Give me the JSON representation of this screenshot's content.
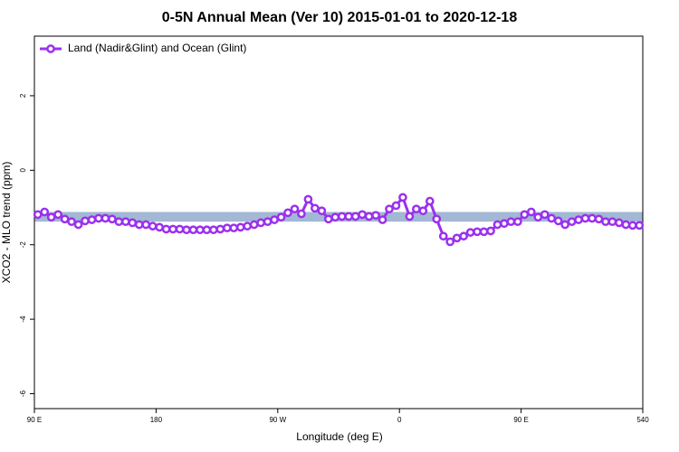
{
  "chart_data": {
    "type": "line",
    "title": "0-5N Annual Mean (Ver 10)   2015-01-01 to 2020-12-18",
    "x_label": "Longitude (deg E)",
    "y_label": "XCO2 - MLO trend (ppm)",
    "x": [
      92.5,
      97.5,
      102.5,
      107.5,
      112.5,
      117.5,
      122.5,
      127.5,
      132.5,
      137.5,
      142.5,
      147.5,
      152.5,
      157.5,
      162.5,
      167.5,
      172.5,
      177.5,
      182.5,
      187.5,
      192.5,
      197.5,
      202.5,
      207.5,
      212.5,
      217.5,
      222.5,
      227.5,
      232.5,
      237.5,
      242.5,
      247.5,
      252.5,
      257.5,
      262.5,
      267.5,
      272.5,
      277.5,
      282.5,
      287.5,
      292.5,
      297.5,
      302.5,
      307.5,
      312.5,
      317.5,
      322.5,
      327.5,
      332.5,
      337.5,
      342.5,
      347.5,
      352.5,
      357.5,
      362.5,
      367.5,
      372.5,
      377.5,
      382.5,
      387.5,
      392.5,
      397.5,
      402.5,
      407.5,
      412.5,
      417.5,
      422.5,
      427.5,
      432.5,
      437.5,
      442.5,
      447.5,
      452.5,
      457.5,
      462.5,
      467.5,
      472.5,
      477.5,
      482.5,
      487.5,
      492.5,
      497.5,
      502.5,
      507.5,
      512.5,
      517.5,
      522.5,
      527.5,
      532.5,
      537.5
    ],
    "series": [
      {
        "name": "Land (Nadir&Glint) and Ocean (Glint)",
        "color": "#9b30ee",
        "values": [
          -1.19,
          -1.12,
          -1.26,
          -1.19,
          -1.31,
          -1.38,
          -1.46,
          -1.36,
          -1.33,
          -1.29,
          -1.29,
          -1.31,
          -1.38,
          -1.38,
          -1.41,
          -1.46,
          -1.46,
          -1.5,
          -1.53,
          -1.58,
          -1.58,
          -1.58,
          -1.6,
          -1.6,
          -1.6,
          -1.6,
          -1.6,
          -1.58,
          -1.55,
          -1.55,
          -1.53,
          -1.5,
          -1.46,
          -1.41,
          -1.38,
          -1.33,
          -1.26,
          -1.14,
          -1.04,
          -1.17,
          -0.78,
          -1.02,
          -1.09,
          -1.31,
          -1.26,
          -1.24,
          -1.24,
          -1.24,
          -1.19,
          -1.24,
          -1.21,
          -1.33,
          -1.04,
          -0.95,
          -0.73,
          -1.24,
          -1.04,
          -1.09,
          -0.83,
          -1.31,
          -1.77,
          -1.92,
          -1.82,
          -1.77,
          -1.67,
          -1.65,
          -1.65,
          -1.63,
          -1.46,
          -1.43,
          -1.38,
          -1.38,
          -1.19,
          -1.12,
          -1.26,
          -1.19,
          -1.29,
          -1.36,
          -1.46,
          -1.38,
          -1.33,
          -1.29,
          -1.29,
          -1.31,
          -1.38,
          -1.38,
          -1.41,
          -1.46,
          -1.48,
          -1.48
        ]
      }
    ],
    "band": {
      "range": [
        -1.38,
        -1.12
      ],
      "color": "#a3b8d4"
    },
    "xlim": [
      90,
      540
    ],
    "xticks": [
      {
        "value": 90,
        "label": "90 E"
      },
      180,
      {
        "value": 270,
        "label": "90 W"
      },
      {
        "value": 360,
        "label": "0"
      },
      {
        "value": 450,
        "label": "90 E"
      },
      540
    ],
    "ylim": [
      -6.4,
      3.6
    ],
    "yticks": [
      -6,
      -4,
      -2,
      0,
      2
    ],
    "legend": "top-left"
  }
}
